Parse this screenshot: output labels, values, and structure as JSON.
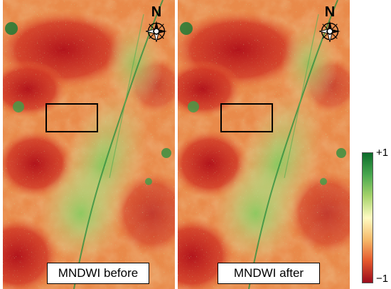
{
  "panels": [
    {
      "label": "MNDWI before",
      "north_label": "N"
    },
    {
      "label": "MNDWI after",
      "north_label": "N"
    }
  ],
  "colorbar": {
    "max_label": "+1",
    "min_label": "−1",
    "colors": [
      "#0b6b2a",
      "#49a84f",
      "#a4d26a",
      "#fffbc2",
      "#f6b96a",
      "#e55a2e",
      "#9b0c1d"
    ]
  },
  "icons": {
    "compass": "compass-rose-icon"
  }
}
